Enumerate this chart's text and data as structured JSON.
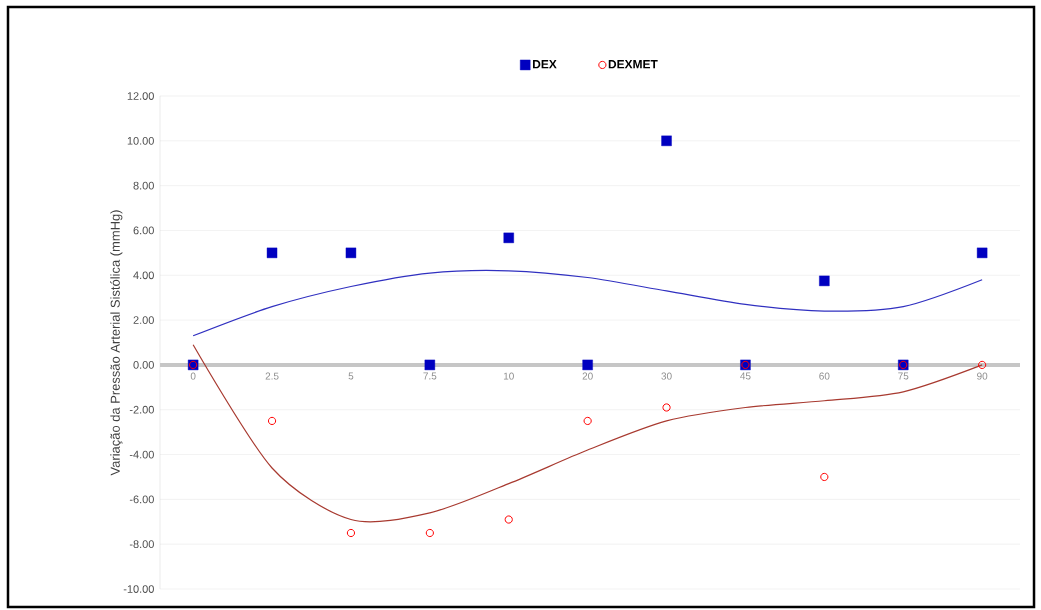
{
  "chart_data": {
    "type": "scatter",
    "ylabel": "Variação da Pressão Arterial  Sistólica (mmHg)",
    "categories": [
      "0",
      "2.5",
      "5",
      "7.5",
      "10",
      "20",
      "30",
      "45",
      "60",
      "75",
      "90"
    ],
    "series": [
      {
        "name": "DEX",
        "color": "#0000c0",
        "marker": "square",
        "values": [
          0,
          5,
          5,
          0,
          5.67,
          0,
          10,
          0,
          3.75,
          0,
          5
        ]
      },
      {
        "name": "DEXMET",
        "color": "#ff0000",
        "marker": "circle",
        "values": [
          0,
          -2.5,
          -7.5,
          -7.5,
          -6.9,
          -2.5,
          -1.9,
          0,
          -5,
          0,
          0
        ]
      },
      {
        "type": "line",
        "color": "#3030c0",
        "marker": "none",
        "values": [
          1.3,
          2.6,
          3.5,
          4.1,
          4.2,
          3.9,
          3.3,
          2.7,
          2.4,
          2.6,
          3.8
        ]
      },
      {
        "type": "line",
        "color": "#a83a30",
        "marker": "none",
        "values": [
          0.9,
          -4.6,
          -6.9,
          -6.6,
          -5.3,
          -3.8,
          -2.5,
          -1.9,
          -1.6,
          -1.2,
          0
        ]
      }
    ],
    "ylim": [
      -10,
      12
    ],
    "yticks": [
      {
        "value": -10,
        "label": "-10.00"
      },
      {
        "value": -8,
        "label": "-8.00"
      },
      {
        "value": -6,
        "label": "-6.00"
      },
      {
        "value": -4,
        "label": "-4.00"
      },
      {
        "value": -2,
        "label": "-2.00"
      },
      {
        "value": 0,
        "label": "0.00"
      },
      {
        "value": 2,
        "label": "2.00"
      },
      {
        "value": 4,
        "label": "4.00"
      },
      {
        "value": 6,
        "label": "6.00"
      },
      {
        "value": 8,
        "label": "8.00"
      },
      {
        "value": 10,
        "label": "10.00"
      },
      {
        "value": 12,
        "label": "12.00"
      }
    ],
    "grid": "y",
    "legend": "top"
  }
}
